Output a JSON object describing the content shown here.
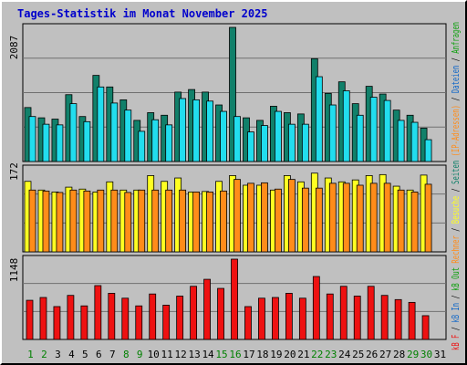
{
  "window": {
    "title": "Tages-Statistik im Monat November 2025"
  },
  "colors": {
    "panel_bg": "#c0c0c0",
    "axis": "#000000",
    "grid": "#707070",
    "weekday": "#000000",
    "weekend": "#008000",
    "hits_dark": "#11806a",
    "files_light": "#22ddee",
    "visits_yellow": "#ffff22",
    "hosts_orange": "#ff8c1a",
    "kb_red": "#ee1111",
    "legend_blue": "#1167c8",
    "legend_green": "#10a010",
    "legend_orange": "#ff8c1a",
    "legend_red": "#ee1111"
  },
  "chart_data": [
    {
      "type": "bar",
      "panel": "top",
      "ylabel_value": "2087",
      "categories": [
        "1",
        "2",
        "3",
        "4",
        "5",
        "6",
        "7",
        "8",
        "9",
        "10",
        "11",
        "12",
        "13",
        "14",
        "15",
        "16",
        "17",
        "18",
        "19",
        "20",
        "21",
        "22",
        "23",
        "24",
        "25",
        "26",
        "27",
        "28",
        "29",
        "30",
        "31"
      ],
      "series": [
        {
          "name": "Anfragen",
          "values": [
            840,
            680,
            660,
            1040,
            700,
            1340,
            1160,
            960,
            640,
            760,
            720,
            1080,
            1120,
            1080,
            880,
            2087,
            680,
            640,
            860,
            760,
            740,
            1600,
            1060,
            1240,
            900,
            1170,
            1050,
            800,
            720,
            520,
            0
          ]
        },
        {
          "name": "Dateien",
          "values": [
            700,
            580,
            570,
            900,
            620,
            1160,
            910,
            800,
            470,
            650,
            570,
            980,
            960,
            940,
            780,
            700,
            460,
            560,
            780,
            580,
            580,
            1320,
            880,
            1100,
            720,
            1000,
            950,
            640,
            610,
            340,
            0
          ]
        }
      ],
      "ylim": [
        0,
        2087
      ]
    },
    {
      "type": "bar",
      "panel": "middle",
      "ylabel_value": "172",
      "categories": [
        "1",
        "2",
        "3",
        "4",
        "5",
        "6",
        "7",
        "8",
        "9",
        "10",
        "11",
        "12",
        "13",
        "14",
        "15",
        "16",
        "17",
        "18",
        "19",
        "20",
        "21",
        "22",
        "23",
        "24",
        "25",
        "26",
        "27",
        "28",
        "29",
        "30",
        "31"
      ],
      "series": [
        {
          "name": "Rechner",
          "values": [
            146,
            128,
            124,
            134,
            130,
            124,
            145,
            128,
            128,
            158,
            146,
            153,
            124,
            125,
            146,
            158,
            138,
            138,
            128,
            158,
            145,
            163,
            153,
            145,
            149,
            158,
            160,
            136,
            128,
            159,
            0
          ]
        },
        {
          "name": "Besuche",
          "values": [
            128,
            126,
            123,
            128,
            126,
            128,
            128,
            123,
            128,
            128,
            128,
            128,
            124,
            124,
            126,
            150,
            142,
            143,
            130,
            150,
            132,
            132,
            142,
            142,
            138,
            142,
            142,
            128,
            124,
            140,
            0
          ]
        }
      ],
      "ylim": [
        0,
        172
      ]
    },
    {
      "type": "bar",
      "panel": "bottom",
      "ylabel_value": "1148",
      "categories": [
        "1",
        "2",
        "3",
        "4",
        "5",
        "6",
        "7",
        "8",
        "9",
        "10",
        "11",
        "12",
        "13",
        "14",
        "15",
        "16",
        "17",
        "18",
        "19",
        "20",
        "21",
        "22",
        "23",
        "24",
        "25",
        "26",
        "27",
        "28",
        "29",
        "30",
        "31"
      ],
      "series": [
        {
          "name": "kB F",
          "values": [
            560,
            600,
            470,
            630,
            480,
            770,
            660,
            590,
            480,
            650,
            490,
            620,
            760,
            860,
            730,
            1148,
            470,
            590,
            600,
            660,
            590,
            900,
            650,
            760,
            620,
            760,
            630,
            570,
            530,
            340,
            0
          ]
        }
      ],
      "ylim": [
        0,
        1148
      ]
    }
  ],
  "legend": {
    "items": [
      {
        "text": "kB F",
        "color_key": "legend_red"
      },
      {
        "text": "/",
        "color_key": "axis"
      },
      {
        "text": "kB In",
        "color_key": "legend_blue"
      },
      {
        "text": "/",
        "color_key": "axis"
      },
      {
        "text": "kB Out",
        "color_key": "legend_green"
      },
      {
        "text": "Rechner",
        "color_key": "legend_orange"
      },
      {
        "text": "/",
        "color_key": "axis"
      },
      {
        "text": "Besuche",
        "color_key": "visits_yellow"
      },
      {
        "text": "/",
        "color_key": "axis"
      },
      {
        "text": "Seiten",
        "color_key": "hits_dark"
      },
      {
        "text": "(IP-Adressen)",
        "color_key": "legend_orange"
      },
      {
        "text": "/",
        "color_key": "axis"
      },
      {
        "text": "Dateien",
        "color_key": "legend_blue"
      },
      {
        "text": "/",
        "color_key": "axis"
      },
      {
        "text": "Anfragen",
        "color_key": "legend_green"
      }
    ]
  },
  "days": {
    "labels": [
      "1",
      "2",
      "3",
      "4",
      "5",
      "6",
      "7",
      "8",
      "9",
      "10",
      "11",
      "12",
      "13",
      "14",
      "15",
      "16",
      "17",
      "18",
      "19",
      "20",
      "21",
      "22",
      "23",
      "24",
      "25",
      "26",
      "27",
      "28",
      "29",
      "30",
      "31"
    ],
    "weekend": [
      1,
      2,
      8,
      9,
      15,
      16,
      22,
      23,
      29,
      30
    ]
  }
}
